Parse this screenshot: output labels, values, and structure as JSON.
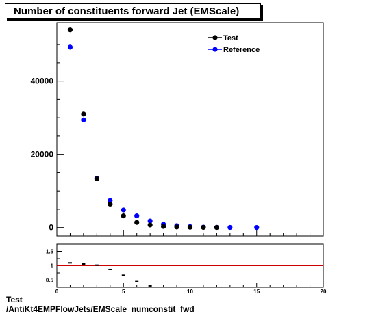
{
  "title": "Number of constituents forward Jet (EMScale)",
  "footer": {
    "line1": "Test",
    "line2": "/AntiKt4EMPFlowJets/EMScale_numconstit_fwd"
  },
  "colors": {
    "test": "#000000",
    "reference": "#0000ff",
    "ratio_line": "#cc0000"
  },
  "chart_data": [
    {
      "type": "scatter",
      "title": "Number of constituents forward Jet (EMScale)",
      "xlim": [
        0,
        20
      ],
      "ylim": [
        -2300,
        56000
      ],
      "y_ticks": [
        0,
        20000,
        40000
      ],
      "legend": {
        "placement": "top-right",
        "entries": [
          "Test",
          "Reference"
        ]
      },
      "series": [
        {
          "name": "Test",
          "x": [
            1,
            2,
            3,
            4,
            5,
            6,
            7,
            8,
            9,
            10,
            11,
            12
          ],
          "values": [
            54000,
            31000,
            13300,
            6400,
            3200,
            1400,
            700,
            300,
            150,
            80,
            40,
            20
          ]
        },
        {
          "name": "Reference",
          "x": [
            1,
            2,
            3,
            4,
            5,
            6,
            7,
            8,
            9,
            10,
            11,
            12,
            13,
            15
          ],
          "values": [
            49300,
            29400,
            13500,
            7400,
            4800,
            3200,
            1800,
            900,
            500,
            250,
            120,
            60,
            30,
            10
          ]
        }
      ]
    },
    {
      "type": "scatter",
      "xlim": [
        0,
        20
      ],
      "ylim": [
        0.25,
        1.75
      ],
      "x_ticks": [
        0,
        5,
        10,
        15,
        20
      ],
      "y_ticks": [
        0.5,
        1,
        1.5
      ],
      "reference_line": 1,
      "series": [
        {
          "x": [
            1,
            2,
            3,
            4,
            5,
            6,
            7
          ],
          "values": [
            1.1,
            1.06,
            1.02,
            0.87,
            0.67,
            0.45,
            0.3
          ]
        }
      ]
    }
  ]
}
